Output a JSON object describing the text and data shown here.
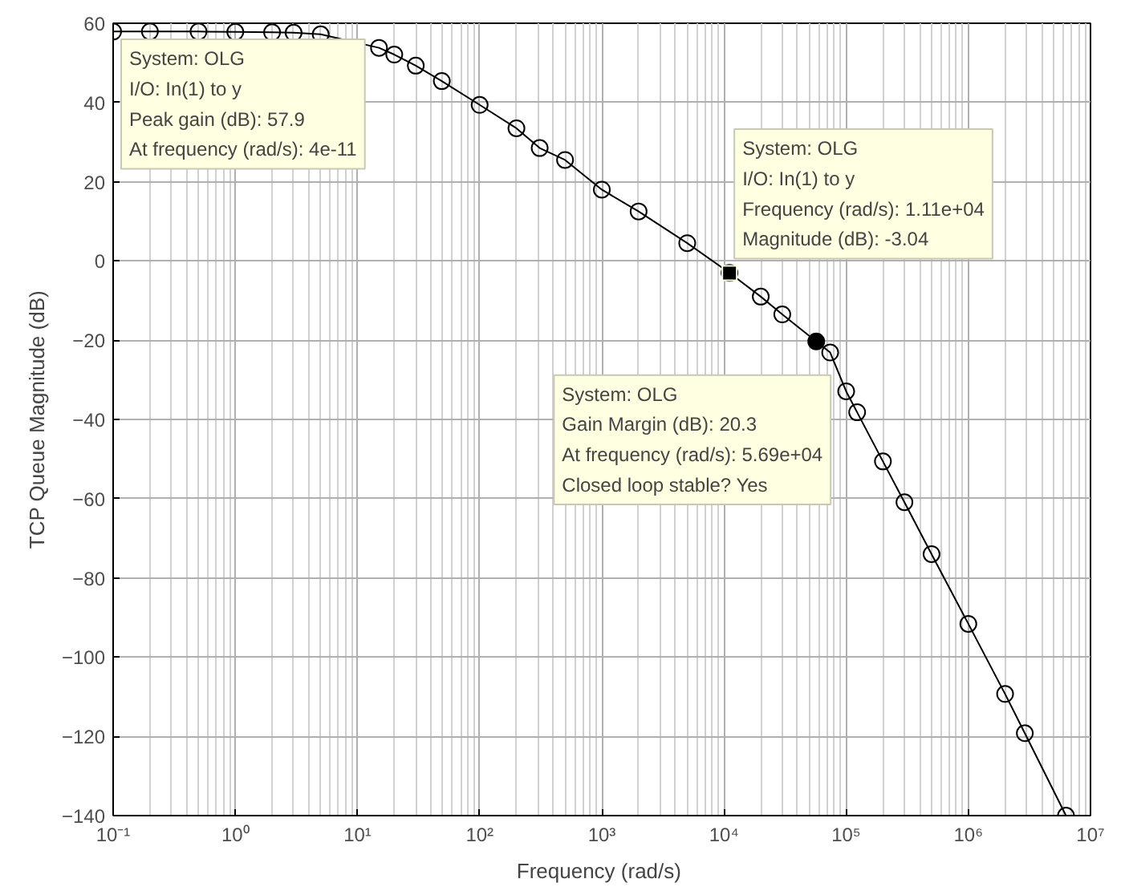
{
  "chart_data": {
    "type": "line",
    "xlabel": "Frequency  (rad/s)",
    "ylabel": "TCP Queue Magnitude (dB)",
    "log": "x",
    "grid": true,
    "marker": "circle",
    "line_style": "solid",
    "xlim": [
      0.1,
      10000000
    ],
    "ylim": [
      -140,
      60
    ],
    "xticks": [
      {
        "value": 0.1,
        "label": "10⁻¹"
      },
      {
        "value": 1,
        "label": "10⁰"
      },
      {
        "value": 10,
        "label": "10¹"
      },
      {
        "value": 100,
        "label": "10²"
      },
      {
        "value": 1000,
        "label": "10³"
      },
      {
        "value": 10000,
        "label": "10⁴"
      },
      {
        "value": 100000,
        "label": "10⁵"
      },
      {
        "value": 1000000,
        "label": "10⁶"
      },
      {
        "value": 10000000,
        "label": "10⁷"
      }
    ],
    "yticks": [
      -140,
      -120,
      -100,
      -80,
      -60,
      -40,
      -20,
      0,
      20,
      40,
      60
    ],
    "series": [
      {
        "color": "#000000",
        "x": [
          0.1,
          0.2,
          0.5,
          1,
          2,
          3,
          5,
          15,
          20,
          30,
          49,
          100,
          200,
          310,
          500,
          1000,
          2000,
          5000,
          11100,
          20000,
          30000,
          56900,
          74000,
          100000,
          123000,
          200000,
          300000,
          500000,
          1000000,
          2000000,
          2900000,
          6300000
        ],
        "values": [
          57.9,
          57.9,
          57.9,
          57.8,
          57.7,
          57.6,
          57.2,
          53.8,
          52.1,
          49.3,
          45.4,
          39.4,
          33.5,
          28.5,
          25.5,
          18,
          12.5,
          4.5,
          -3,
          -9,
          -13.5,
          -20.3,
          -23.1,
          -32.9,
          -38.2,
          -50.6,
          -60.9,
          -74,
          -91.6,
          -109.3,
          -119.2,
          -140
        ]
      }
    ],
    "annotations": [
      "System: OLG\nI/O: In(1) to y\nPeak gain (dB): 57.9\nAt frequency (rad/s): 4e-11",
      {
        "text": "System: OLG\nI/O: In(1) to y\nFrequency (rad/s): 1.11e+04\nMagnitude (dB): -3.04",
        "x": 11100,
        "y": -3.04
      },
      {
        "text": "System: OLG\nGain Margin (dB): 20.3\nAt frequency (rad/s): 5.69e+04\nClosed loop stable? Yes",
        "x": 56900,
        "y": -20.3
      }
    ]
  }
}
